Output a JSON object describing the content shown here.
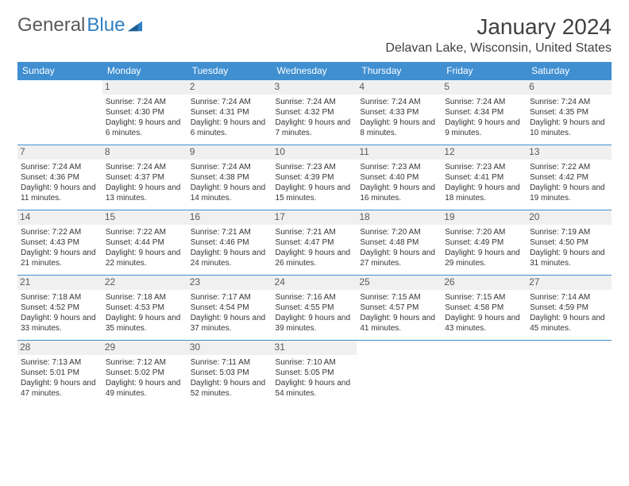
{
  "logo": {
    "text1": "General",
    "text2": "Blue"
  },
  "title": "January 2024",
  "location": "Delavan Lake, Wisconsin, United States",
  "colors": {
    "header_bg": "#3f8fd1",
    "header_text": "#ffffff",
    "border": "#3f8fd1",
    "daynum_bg": "#f0f0f0",
    "text": "#353535",
    "logo_gray": "#5a5a5a",
    "logo_blue": "#2f7fc2"
  },
  "day_headers": [
    "Sunday",
    "Monday",
    "Tuesday",
    "Wednesday",
    "Thursday",
    "Friday",
    "Saturday"
  ],
  "weeks": [
    [
      {
        "n": "",
        "sr": "",
        "ss": "",
        "dl": ""
      },
      {
        "n": "1",
        "sr": "Sunrise: 7:24 AM",
        "ss": "Sunset: 4:30 PM",
        "dl": "Daylight: 9 hours and 6 minutes."
      },
      {
        "n": "2",
        "sr": "Sunrise: 7:24 AM",
        "ss": "Sunset: 4:31 PM",
        "dl": "Daylight: 9 hours and 6 minutes."
      },
      {
        "n": "3",
        "sr": "Sunrise: 7:24 AM",
        "ss": "Sunset: 4:32 PM",
        "dl": "Daylight: 9 hours and 7 minutes."
      },
      {
        "n": "4",
        "sr": "Sunrise: 7:24 AM",
        "ss": "Sunset: 4:33 PM",
        "dl": "Daylight: 9 hours and 8 minutes."
      },
      {
        "n": "5",
        "sr": "Sunrise: 7:24 AM",
        "ss": "Sunset: 4:34 PM",
        "dl": "Daylight: 9 hours and 9 minutes."
      },
      {
        "n": "6",
        "sr": "Sunrise: 7:24 AM",
        "ss": "Sunset: 4:35 PM",
        "dl": "Daylight: 9 hours and 10 minutes."
      }
    ],
    [
      {
        "n": "7",
        "sr": "Sunrise: 7:24 AM",
        "ss": "Sunset: 4:36 PM",
        "dl": "Daylight: 9 hours and 11 minutes."
      },
      {
        "n": "8",
        "sr": "Sunrise: 7:24 AM",
        "ss": "Sunset: 4:37 PM",
        "dl": "Daylight: 9 hours and 13 minutes."
      },
      {
        "n": "9",
        "sr": "Sunrise: 7:24 AM",
        "ss": "Sunset: 4:38 PM",
        "dl": "Daylight: 9 hours and 14 minutes."
      },
      {
        "n": "10",
        "sr": "Sunrise: 7:23 AM",
        "ss": "Sunset: 4:39 PM",
        "dl": "Daylight: 9 hours and 15 minutes."
      },
      {
        "n": "11",
        "sr": "Sunrise: 7:23 AM",
        "ss": "Sunset: 4:40 PM",
        "dl": "Daylight: 9 hours and 16 minutes."
      },
      {
        "n": "12",
        "sr": "Sunrise: 7:23 AM",
        "ss": "Sunset: 4:41 PM",
        "dl": "Daylight: 9 hours and 18 minutes."
      },
      {
        "n": "13",
        "sr": "Sunrise: 7:22 AM",
        "ss": "Sunset: 4:42 PM",
        "dl": "Daylight: 9 hours and 19 minutes."
      }
    ],
    [
      {
        "n": "14",
        "sr": "Sunrise: 7:22 AM",
        "ss": "Sunset: 4:43 PM",
        "dl": "Daylight: 9 hours and 21 minutes."
      },
      {
        "n": "15",
        "sr": "Sunrise: 7:22 AM",
        "ss": "Sunset: 4:44 PM",
        "dl": "Daylight: 9 hours and 22 minutes."
      },
      {
        "n": "16",
        "sr": "Sunrise: 7:21 AM",
        "ss": "Sunset: 4:46 PM",
        "dl": "Daylight: 9 hours and 24 minutes."
      },
      {
        "n": "17",
        "sr": "Sunrise: 7:21 AM",
        "ss": "Sunset: 4:47 PM",
        "dl": "Daylight: 9 hours and 26 minutes."
      },
      {
        "n": "18",
        "sr": "Sunrise: 7:20 AM",
        "ss": "Sunset: 4:48 PM",
        "dl": "Daylight: 9 hours and 27 minutes."
      },
      {
        "n": "19",
        "sr": "Sunrise: 7:20 AM",
        "ss": "Sunset: 4:49 PM",
        "dl": "Daylight: 9 hours and 29 minutes."
      },
      {
        "n": "20",
        "sr": "Sunrise: 7:19 AM",
        "ss": "Sunset: 4:50 PM",
        "dl": "Daylight: 9 hours and 31 minutes."
      }
    ],
    [
      {
        "n": "21",
        "sr": "Sunrise: 7:18 AM",
        "ss": "Sunset: 4:52 PM",
        "dl": "Daylight: 9 hours and 33 minutes."
      },
      {
        "n": "22",
        "sr": "Sunrise: 7:18 AM",
        "ss": "Sunset: 4:53 PM",
        "dl": "Daylight: 9 hours and 35 minutes."
      },
      {
        "n": "23",
        "sr": "Sunrise: 7:17 AM",
        "ss": "Sunset: 4:54 PM",
        "dl": "Daylight: 9 hours and 37 minutes."
      },
      {
        "n": "24",
        "sr": "Sunrise: 7:16 AM",
        "ss": "Sunset: 4:55 PM",
        "dl": "Daylight: 9 hours and 39 minutes."
      },
      {
        "n": "25",
        "sr": "Sunrise: 7:15 AM",
        "ss": "Sunset: 4:57 PM",
        "dl": "Daylight: 9 hours and 41 minutes."
      },
      {
        "n": "26",
        "sr": "Sunrise: 7:15 AM",
        "ss": "Sunset: 4:58 PM",
        "dl": "Daylight: 9 hours and 43 minutes."
      },
      {
        "n": "27",
        "sr": "Sunrise: 7:14 AM",
        "ss": "Sunset: 4:59 PM",
        "dl": "Daylight: 9 hours and 45 minutes."
      }
    ],
    [
      {
        "n": "28",
        "sr": "Sunrise: 7:13 AM",
        "ss": "Sunset: 5:01 PM",
        "dl": "Daylight: 9 hours and 47 minutes."
      },
      {
        "n": "29",
        "sr": "Sunrise: 7:12 AM",
        "ss": "Sunset: 5:02 PM",
        "dl": "Daylight: 9 hours and 49 minutes."
      },
      {
        "n": "30",
        "sr": "Sunrise: 7:11 AM",
        "ss": "Sunset: 5:03 PM",
        "dl": "Daylight: 9 hours and 52 minutes."
      },
      {
        "n": "31",
        "sr": "Sunrise: 7:10 AM",
        "ss": "Sunset: 5:05 PM",
        "dl": "Daylight: 9 hours and 54 minutes."
      },
      {
        "n": "",
        "sr": "",
        "ss": "",
        "dl": ""
      },
      {
        "n": "",
        "sr": "",
        "ss": "",
        "dl": ""
      },
      {
        "n": "",
        "sr": "",
        "ss": "",
        "dl": ""
      }
    ]
  ]
}
